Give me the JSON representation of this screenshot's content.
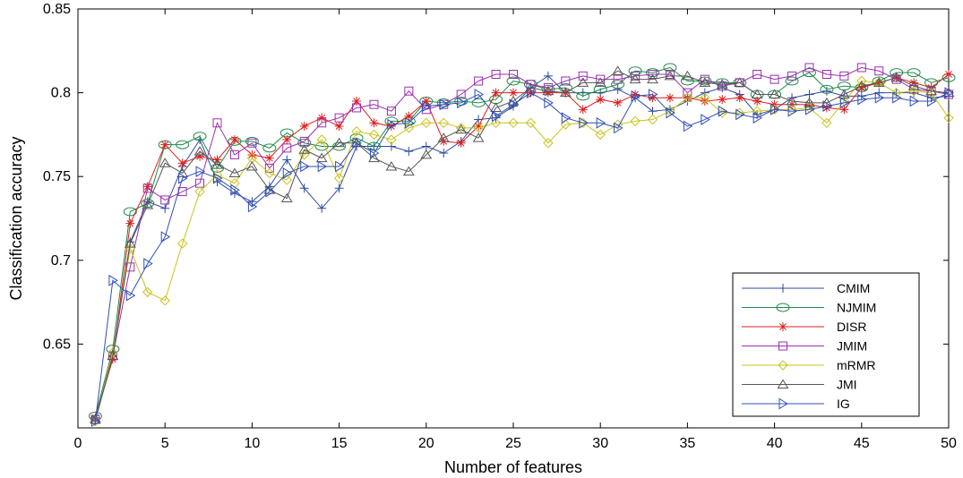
{
  "chart_data": {
    "type": "line",
    "title": "",
    "xlabel": "Number of features",
    "ylabel": "Classification accuracy",
    "xlim": [
      0,
      50
    ],
    "ylim": [
      0.6,
      0.85
    ],
    "x_ticks": [
      "0",
      "5",
      "10",
      "15",
      "20",
      "25",
      "30",
      "35",
      "40",
      "45",
      "50"
    ],
    "y_ticks": [
      "0.65",
      "0.7",
      "0.75",
      "0.8",
      "0.85"
    ],
    "grid": false,
    "legend_position": "bottom-right",
    "x": [
      1,
      2,
      3,
      4,
      5,
      6,
      7,
      8,
      9,
      10,
      11,
      12,
      13,
      14,
      15,
      16,
      17,
      18,
      19,
      20,
      21,
      22,
      23,
      24,
      25,
      26,
      27,
      28,
      29,
      30,
      31,
      32,
      33,
      34,
      35,
      36,
      37,
      38,
      39,
      40,
      41,
      42,
      43,
      44,
      45,
      46,
      47,
      48,
      49,
      50
    ],
    "series": [
      {
        "name": "CMIM",
        "color": "#2c4ba0",
        "marker": "plus",
        "values": [
          0.604,
          0.643,
          0.711,
          0.735,
          0.731,
          0.756,
          0.772,
          0.747,
          0.74,
          0.735,
          0.744,
          0.76,
          0.743,
          0.731,
          0.743,
          0.768,
          0.768,
          0.768,
          0.765,
          0.768,
          0.764,
          0.771,
          0.784,
          0.785,
          0.792,
          0.803,
          0.81,
          0.8,
          0.8,
          0.8,
          0.802,
          0.797,
          0.789,
          0.79,
          0.795,
          0.8,
          0.803,
          0.799,
          0.787,
          0.79,
          0.797,
          0.799,
          0.801,
          0.798,
          0.798,
          0.8,
          0.8,
          0.8,
          0.797,
          0.798
        ]
      },
      {
        "name": "NJMIM",
        "color": "#1d8a4a",
        "marker": "ellipse",
        "values": [
          0.607,
          0.647,
          0.729,
          0.734,
          0.769,
          0.769,
          0.774,
          0.755,
          0.771,
          0.771,
          0.767,
          0.776,
          0.77,
          0.768,
          0.768,
          0.773,
          0.768,
          0.783,
          0.783,
          0.795,
          0.794,
          0.795,
          0.794,
          0.796,
          0.807,
          0.805,
          0.802,
          0.803,
          0.798,
          0.802,
          0.805,
          0.813,
          0.812,
          0.815,
          0.807,
          0.807,
          0.806,
          0.806,
          0.799,
          0.799,
          0.807,
          0.812,
          0.802,
          0.804,
          0.803,
          0.807,
          0.812,
          0.812,
          0.806,
          0.809
        ]
      },
      {
        "name": "DISR",
        "color": "#e01e1e",
        "marker": "star",
        "values": [
          0.606,
          0.641,
          0.722,
          0.744,
          0.769,
          0.758,
          0.762,
          0.76,
          0.772,
          0.763,
          0.761,
          0.772,
          0.78,
          0.785,
          0.78,
          0.795,
          0.782,
          0.78,
          0.786,
          0.795,
          0.771,
          0.77,
          0.78,
          0.8,
          0.8,
          0.8,
          0.8,
          0.8,
          0.79,
          0.796,
          0.794,
          0.799,
          0.797,
          0.797,
          0.797,
          0.795,
          0.796,
          0.797,
          0.795,
          0.793,
          0.793,
          0.793,
          0.791,
          0.79,
          0.803,
          0.806,
          0.809,
          0.806,
          0.803,
          0.811
        ]
      },
      {
        "name": "JMIM",
        "color": "#9b2fae",
        "marker": "square",
        "values": [
          0.605,
          0.643,
          0.696,
          0.743,
          0.736,
          0.741,
          0.746,
          0.782,
          0.763,
          0.77,
          0.755,
          0.767,
          0.771,
          0.782,
          0.785,
          0.791,
          0.793,
          0.789,
          0.801,
          0.79,
          0.793,
          0.799,
          0.807,
          0.811,
          0.811,
          0.805,
          0.803,
          0.807,
          0.81,
          0.808,
          0.808,
          0.81,
          0.811,
          0.811,
          0.8,
          0.808,
          0.804,
          0.806,
          0.811,
          0.808,
          0.81,
          0.815,
          0.811,
          0.81,
          0.815,
          0.813,
          0.808,
          0.802,
          0.801,
          0.799
        ]
      },
      {
        "name": "mRMR",
        "color": "#c9c21a",
        "marker": "diamond",
        "values": [
          0.604,
          0.645,
          0.707,
          0.681,
          0.676,
          0.71,
          0.741,
          0.751,
          0.746,
          0.761,
          0.752,
          0.748,
          0.763,
          0.772,
          0.749,
          0.777,
          0.775,
          0.772,
          0.779,
          0.782,
          0.782,
          0.779,
          0.779,
          0.782,
          0.782,
          0.782,
          0.77,
          0.781,
          0.782,
          0.775,
          0.781,
          0.783,
          0.784,
          0.789,
          0.797,
          0.797,
          0.788,
          0.788,
          0.789,
          0.79,
          0.79,
          0.791,
          0.782,
          0.795,
          0.807,
          0.806,
          0.8,
          0.801,
          0.8,
          0.785
        ]
      },
      {
        "name": "JMI",
        "color": "#555555",
        "marker": "triangle",
        "values": [
          0.605,
          0.643,
          0.71,
          0.733,
          0.758,
          0.752,
          0.765,
          0.757,
          0.752,
          0.756,
          0.742,
          0.737,
          0.766,
          0.761,
          0.77,
          0.77,
          0.761,
          0.756,
          0.753,
          0.763,
          0.773,
          0.778,
          0.773,
          0.791,
          0.795,
          0.803,
          0.801,
          0.8,
          0.806,
          0.806,
          0.813,
          0.808,
          0.808,
          0.81,
          0.81,
          0.806,
          0.805,
          0.806,
          0.799,
          0.799,
          0.795,
          0.794,
          0.794,
          0.799,
          0.804,
          0.806,
          0.809,
          0.804,
          0.801,
          0.8
        ]
      },
      {
        "name": "IG",
        "color": "#2f4fb8",
        "marker": "triangle-right",
        "values": [
          0.604,
          0.688,
          0.679,
          0.698,
          0.714,
          0.749,
          0.753,
          0.749,
          0.742,
          0.732,
          0.741,
          0.752,
          0.756,
          0.756,
          0.756,
          0.77,
          0.764,
          0.781,
          0.782,
          0.792,
          0.793,
          0.794,
          0.799,
          0.786,
          0.793,
          0.8,
          0.794,
          0.785,
          0.782,
          0.782,
          0.779,
          0.798,
          0.799,
          0.788,
          0.78,
          0.784,
          0.789,
          0.787,
          0.785,
          0.79,
          0.789,
          0.79,
          0.792,
          0.794,
          0.796,
          0.797,
          0.797,
          0.795,
          0.795,
          0.8
        ]
      }
    ]
  }
}
